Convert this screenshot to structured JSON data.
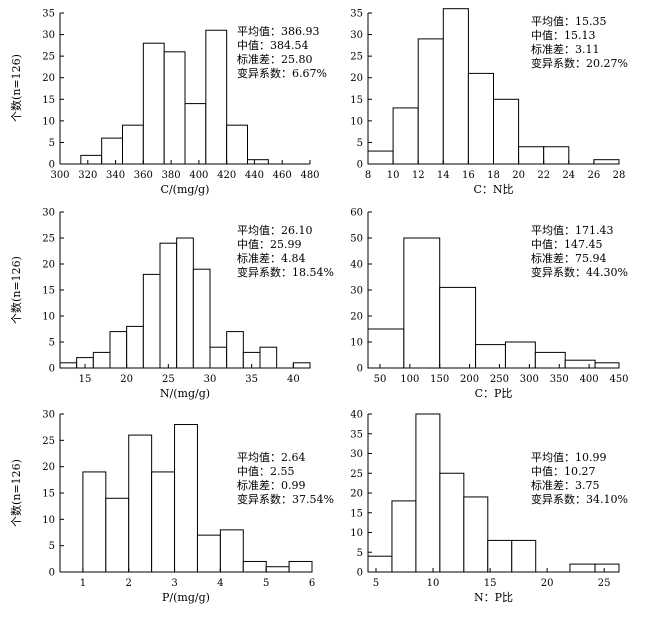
{
  "y_axis_label": "个数(n=126)",
  "stat_labels": [
    "平均值：",
    "中值：",
    "标准差：",
    "变异系数："
  ],
  "chart_data": [
    {
      "type": "bar",
      "xlabel": "C/(mg/g)",
      "ylabel": "个数(n=126)",
      "xlim": [
        300,
        480
      ],
      "ylim": [
        0,
        35
      ],
      "xticks": [
        300,
        320,
        340,
        360,
        380,
        400,
        420,
        440,
        460,
        480
      ],
      "yticks": [
        0,
        5,
        10,
        15,
        20,
        25,
        30,
        35
      ],
      "bins": [
        [
          315,
          330
        ],
        [
          330,
          345
        ],
        [
          345,
          360
        ],
        [
          360,
          375
        ],
        [
          375,
          390
        ],
        [
          390,
          405
        ],
        [
          405,
          420
        ],
        [
          420,
          435
        ],
        [
          435,
          450
        ]
      ],
      "values": [
        2,
        6,
        9,
        28,
        26,
        14,
        31,
        9,
        1
      ],
      "stats": [
        "386.93",
        "384.54",
        "25.80",
        "6.67%"
      ]
    },
    {
      "type": "bar",
      "xlabel": "C：N比",
      "ylabel": "",
      "xlim": [
        8,
        28
      ],
      "ylim": [
        0,
        35
      ],
      "xticks": [
        8,
        10,
        12,
        14,
        16,
        18,
        20,
        22,
        24,
        26,
        28
      ],
      "yticks": [
        0,
        5,
        10,
        15,
        20,
        25,
        30,
        35
      ],
      "bins": [
        [
          8,
          10
        ],
        [
          10,
          12
        ],
        [
          12,
          14
        ],
        [
          14,
          16
        ],
        [
          16,
          18
        ],
        [
          18,
          20
        ],
        [
          20,
          22
        ],
        [
          22,
          24
        ],
        [
          26,
          28
        ]
      ],
      "values": [
        3,
        13,
        29,
        36,
        21,
        15,
        4,
        4,
        1
      ],
      "stats": [
        "15.35",
        "15.13",
        "3.11",
        "20.27%"
      ]
    },
    {
      "type": "bar",
      "xlabel": "N/(mg/g)",
      "ylabel": "个数(n=126)",
      "xlim": [
        12,
        42
      ],
      "ylim": [
        0,
        30
      ],
      "xticks": [
        15,
        20,
        25,
        30,
        35,
        40
      ],
      "yticks": [
        0,
        5,
        10,
        15,
        20,
        25,
        30
      ],
      "bins": [
        [
          12,
          14
        ],
        [
          14,
          16
        ],
        [
          16,
          18
        ],
        [
          18,
          20
        ],
        [
          20,
          22
        ],
        [
          22,
          24
        ],
        [
          24,
          26
        ],
        [
          26,
          28
        ],
        [
          28,
          30
        ],
        [
          30,
          32
        ],
        [
          32,
          34
        ],
        [
          34,
          36
        ],
        [
          36,
          38
        ],
        [
          40,
          42
        ]
      ],
      "values": [
        1,
        2,
        3,
        7,
        8,
        18,
        24,
        25,
        19,
        4,
        7,
        3,
        4,
        1
      ],
      "stats": [
        "26.10",
        "25.99",
        "4.84",
        "18.54%"
      ]
    },
    {
      "type": "bar",
      "xlabel": "C：P比",
      "ylabel": "",
      "xlim": [
        30,
        450
      ],
      "ylim": [
        0,
        60
      ],
      "xticks": [
        50,
        100,
        150,
        200,
        250,
        300,
        350,
        400,
        450
      ],
      "yticks": [
        0,
        10,
        20,
        30,
        40,
        50,
        60
      ],
      "bins": [
        [
          30,
          90
        ],
        [
          90,
          150
        ],
        [
          150,
          210
        ],
        [
          210,
          260
        ],
        [
          260,
          310
        ],
        [
          310,
          360
        ],
        [
          360,
          410
        ],
        [
          410,
          450
        ]
      ],
      "values": [
        15,
        50,
        31,
        9,
        10,
        6,
        3,
        2
      ],
      "stats": [
        "171.43",
        "147.45",
        "75.94",
        "44.30%"
      ]
    },
    {
      "type": "bar",
      "xlabel": "P/(mg/g)",
      "ylabel": "个数(n=126)",
      "xlim": [
        0.5,
        6
      ],
      "ylim": [
        0,
        30
      ],
      "xticks": [
        1,
        2,
        3,
        4,
        5,
        6
      ],
      "yticks": [
        0,
        5,
        10,
        15,
        20,
        25,
        30
      ],
      "bins": [
        [
          1,
          1.5
        ],
        [
          1.5,
          2
        ],
        [
          2,
          2.5
        ],
        [
          2.5,
          3
        ],
        [
          3,
          3.5
        ],
        [
          3.5,
          4
        ],
        [
          4,
          4.5
        ],
        [
          4.5,
          5
        ],
        [
          5,
          5.5
        ],
        [
          5.5,
          6
        ]
      ],
      "values": [
        19,
        14,
        26,
        19,
        28,
        7,
        8,
        2,
        1,
        2
      ],
      "stats": [
        "2.64",
        "2.55",
        "0.99",
        "37.54%"
      ]
    },
    {
      "type": "bar",
      "xlabel": "N：P比",
      "ylabel": "",
      "xlim": [
        4.3,
        26.3
      ],
      "ylim": [
        0,
        40
      ],
      "xticks": [
        5,
        10,
        15,
        20,
        25
      ],
      "yticks": [
        0,
        5,
        10,
        15,
        20,
        25,
        30,
        35,
        40
      ],
      "bins": [
        [
          4.3,
          6.4
        ],
        [
          6.4,
          8.5
        ],
        [
          8.5,
          10.6
        ],
        [
          10.6,
          12.7
        ],
        [
          12.7,
          14.8
        ],
        [
          14.8,
          16.9
        ],
        [
          16.9,
          19
        ],
        [
          22,
          24.2
        ],
        [
          24.2,
          26.3
        ]
      ],
      "values": [
        4,
        18,
        40,
        25,
        19,
        8,
        8,
        2,
        2
      ],
      "stats": [
        "10.99",
        "10.27",
        "3.75",
        "34.10%"
      ]
    }
  ]
}
